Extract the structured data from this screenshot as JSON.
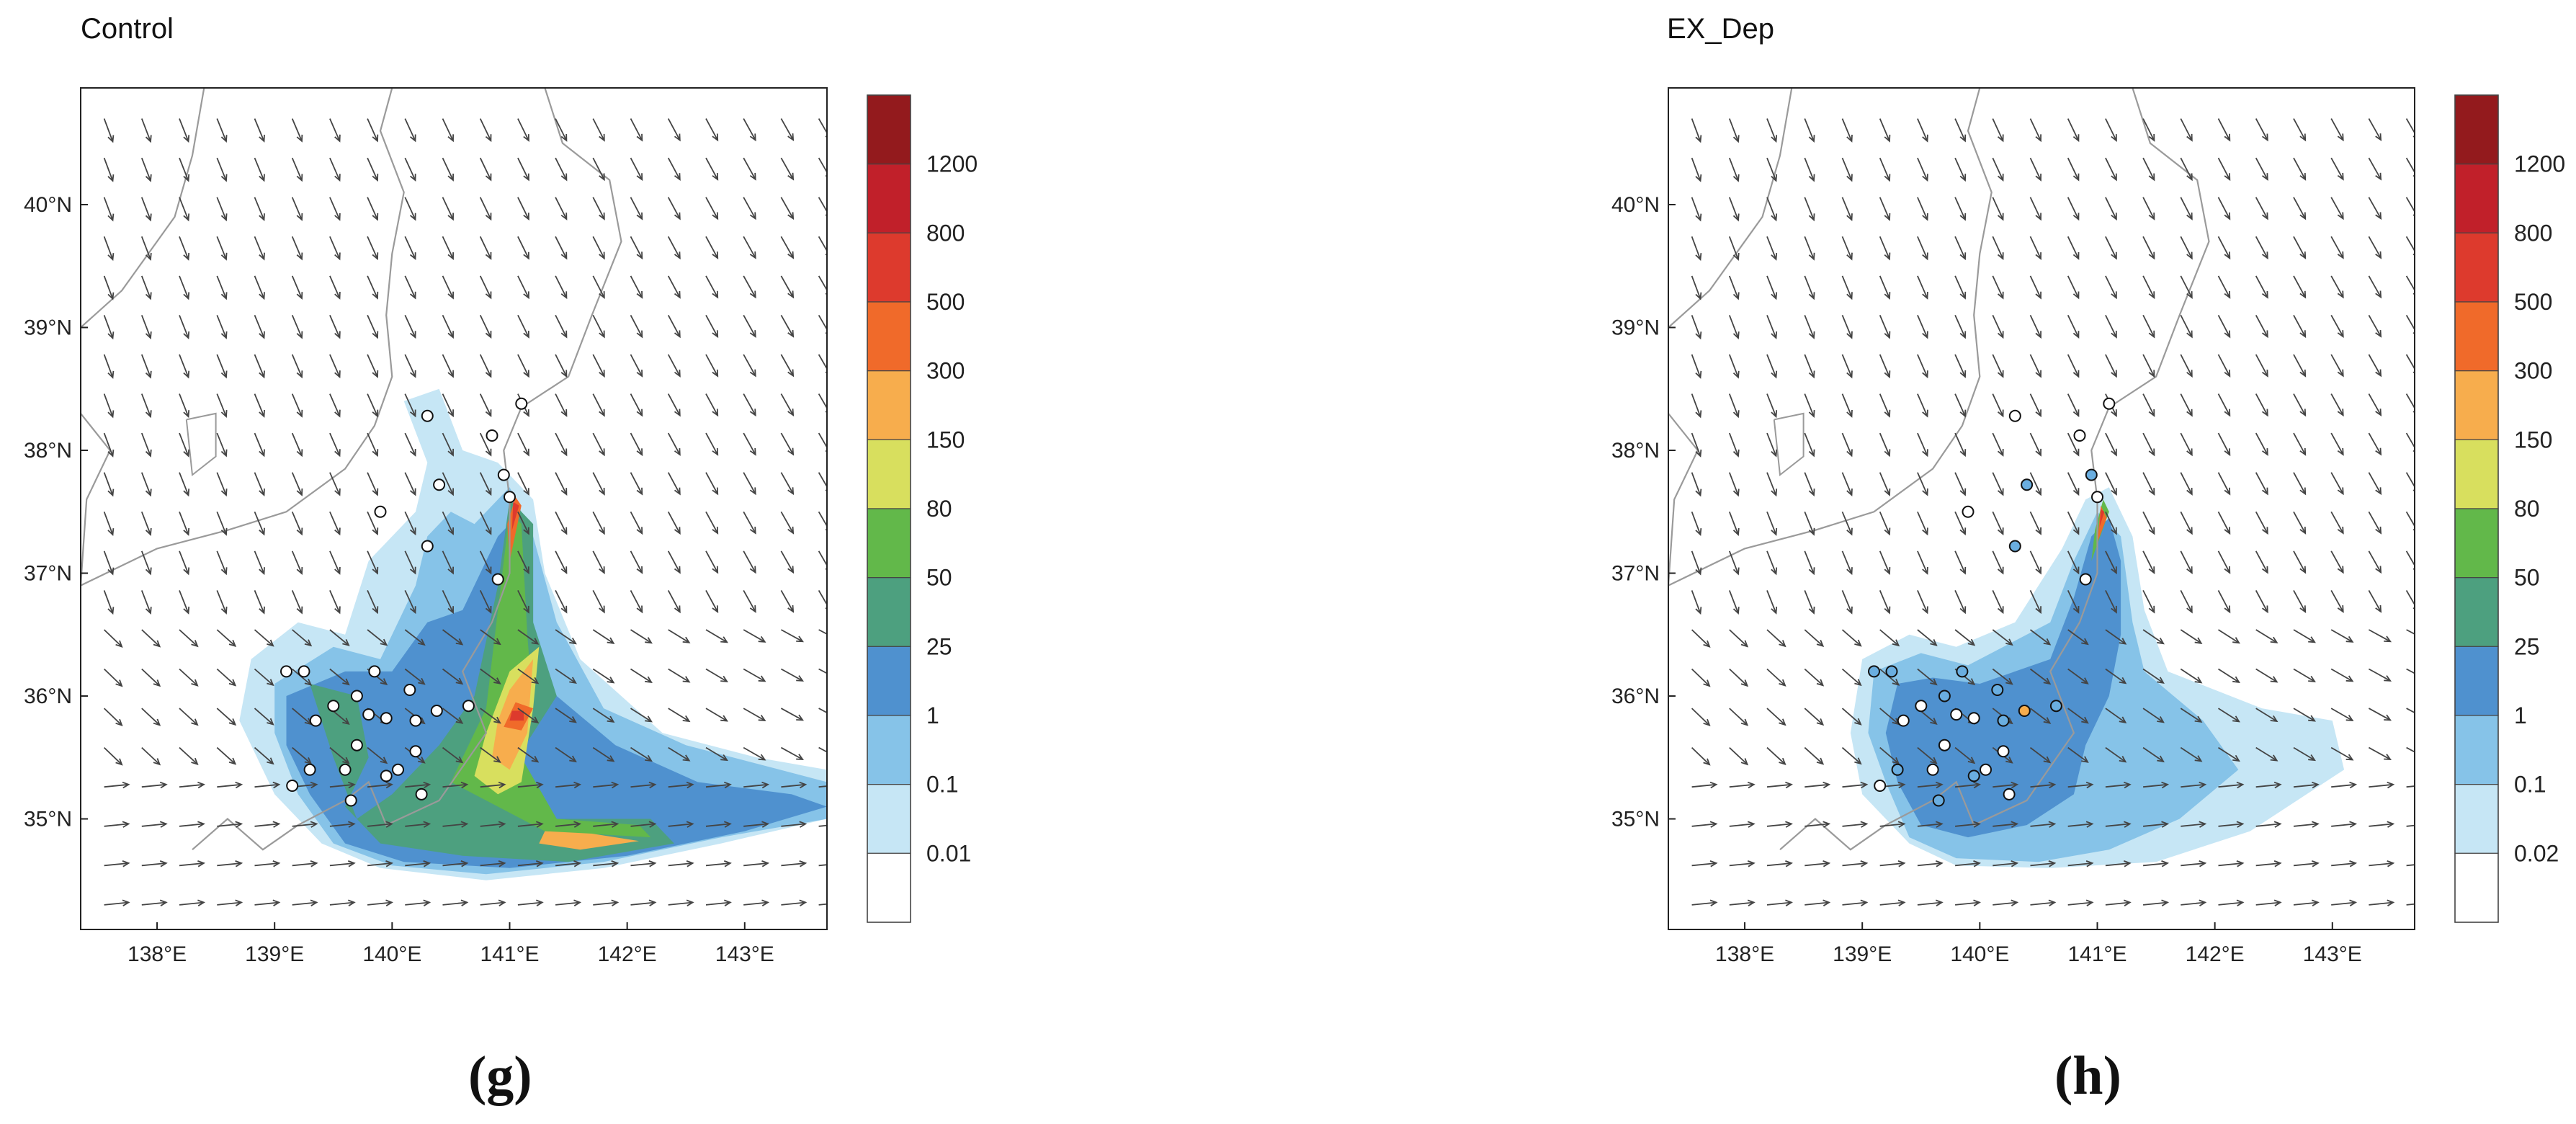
{
  "panels": [
    {
      "id": "g",
      "title": "Control",
      "label": "(g)",
      "colorbar_labels": [
        "1200",
        "800",
        "500",
        "300",
        "150",
        "80",
        "50",
        "25",
        "1",
        "0.1",
        "0.01"
      ],
      "markers": "white"
    },
    {
      "id": "h",
      "title": "EX_Dep",
      "label": "(h)",
      "colorbar_labels": [
        "1200",
        "800",
        "500",
        "300",
        "150",
        "80",
        "50",
        "25",
        "1",
        "0.1",
        "0.02"
      ],
      "markers": "mixed"
    }
  ],
  "axes": {
    "lat_labels": [
      "40°N",
      "39°N",
      "38°N",
      "37°N",
      "36°N",
      "35°N"
    ],
    "lon_labels": [
      "138°E",
      "139°E",
      "140°E",
      "141°E",
      "142°E",
      "143°E"
    ]
  },
  "colors": {
    "levels": [
      "#ffffff",
      "#c6e6f5",
      "#86c3e8",
      "#4f91cf",
      "#4da07f",
      "#62b84a",
      "#d8df5e",
      "#f7ad4d",
      "#f06a2a",
      "#dd3a2d",
      "#c1202a",
      "#931a1d"
    ]
  }
}
